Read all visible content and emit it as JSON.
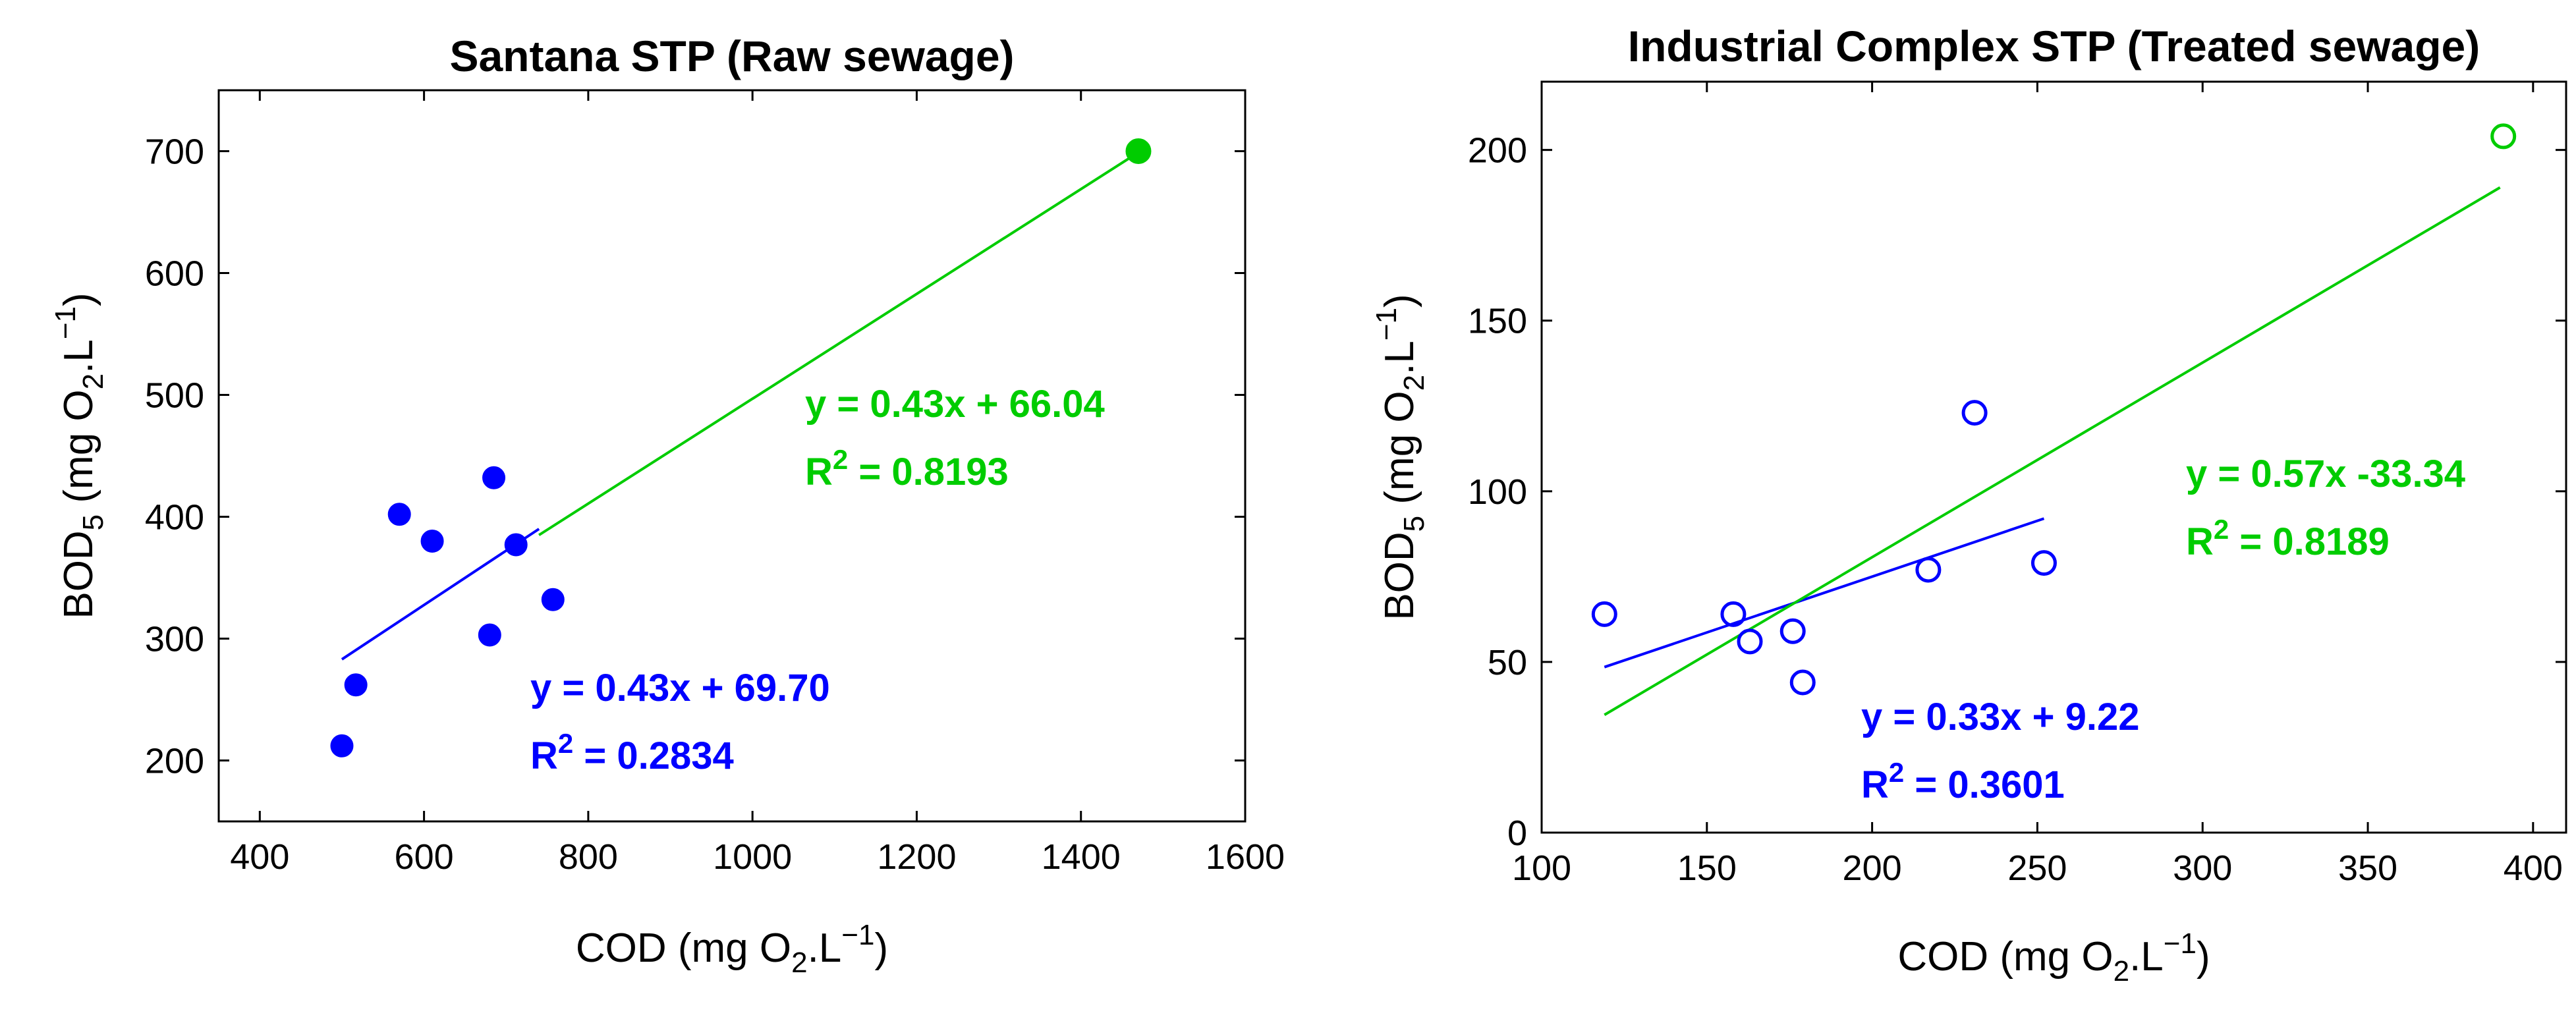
{
  "chart_data": [
    {
      "type": "scatter",
      "title": "Santana STP (Raw sewage)",
      "xlabel": {
        "main": "COD (mg O",
        "sub": "2",
        "tail": ".L",
        "sup": "−1",
        "close": ")"
      },
      "ylabel": {
        "main": "BOD",
        "sub": "5",
        "mid": " (mg O",
        "sub2": "2",
        "tail": ".L",
        "sup": "−1",
        "close": ")"
      },
      "xlim": [
        350,
        1600
      ],
      "ylim": [
        150,
        750
      ],
      "xticks": [
        400,
        600,
        800,
        1000,
        1200,
        1400,
        1600
      ],
      "yticks": [
        200,
        300,
        400,
        500,
        600,
        700
      ],
      "marker_style": "filled",
      "series": [
        {
          "name": "blue",
          "color": "#0000ff",
          "points": [
            {
              "x": 500,
              "y": 212
            },
            {
              "x": 517,
              "y": 262
            },
            {
              "x": 570,
              "y": 402
            },
            {
              "x": 610,
              "y": 380
            },
            {
              "x": 680,
              "y": 303
            },
            {
              "x": 685,
              "y": 432
            },
            {
              "x": 712,
              "y": 377
            },
            {
              "x": 757,
              "y": 332
            }
          ],
          "fit": {
            "x0": 500,
            "y0": 283,
            "x1": 740,
            "y1": 390
          },
          "equation": "y = 0.43x + 69.70",
          "r2_label": "R",
          "r2_sup": "2",
          "r2_value": " = 0.2834"
        },
        {
          "name": "green",
          "color": "#00cc00",
          "points": [
            {
              "x": 1470,
              "y": 700
            }
          ],
          "fit": {
            "x0": 740,
            "y0": 385,
            "x1": 1470,
            "y1": 699
          },
          "equation": "y = 0.43x + 66.04",
          "r2_label": "R",
          "r2_sup": "2",
          "r2_value": " = 0.8193"
        }
      ]
    },
    {
      "type": "scatter",
      "title": "Industrial Complex STP (Treated sewage)",
      "xlabel": {
        "main": "COD (mg O",
        "sub": "2",
        "tail": ".L",
        "sup": "−1",
        "close": ")"
      },
      "ylabel": {
        "main": "BOD",
        "sub": "5",
        "mid": " (mg O",
        "sub2": "2",
        "tail": ".L",
        "sup": "−1",
        "close": ")"
      },
      "xlim": [
        100,
        410
      ],
      "ylim": [
        0,
        220
      ],
      "xticks": [
        100,
        150,
        200,
        250,
        300,
        350,
        400
      ],
      "yticks": [
        0,
        50,
        100,
        150,
        200
      ],
      "marker_style": "open",
      "series": [
        {
          "name": "blue",
          "color": "#0000ff",
          "points": [
            {
              "x": 119,
              "y": 64
            },
            {
              "x": 158,
              "y": 64
            },
            {
              "x": 163,
              "y": 56
            },
            {
              "x": 176,
              "y": 59
            },
            {
              "x": 179,
              "y": 44
            },
            {
              "x": 217,
              "y": 77
            },
            {
              "x": 231,
              "y": 123
            },
            {
              "x": 252,
              "y": 79
            }
          ],
          "fit": {
            "x0": 119,
            "y0": 48.5,
            "x1": 252,
            "y1": 92
          },
          "equation": "y = 0.33x + 9.22",
          "r2_label": "R",
          "r2_sup": "2",
          "r2_value": " = 0.3601"
        },
        {
          "name": "green",
          "color": "#00cc00",
          "points": [
            {
              "x": 391,
              "y": 204
            }
          ],
          "fit": {
            "x0": 119,
            "y0": 34.5,
            "x1": 390,
            "y1": 189
          },
          "equation": "y = 0.57x -33.34",
          "r2_label": "R",
          "r2_sup": "2",
          "r2_value": " = 0.8189"
        }
      ]
    }
  ]
}
